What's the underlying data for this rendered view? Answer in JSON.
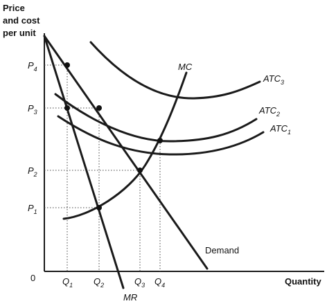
{
  "chart_data": {
    "type": "line",
    "title": "",
    "ylabel_lines": [
      "Price",
      "and cost",
      "per unit"
    ],
    "xlabel": "Quantity",
    "origin_label": "0",
    "y_ticks": [
      {
        "id": "P4",
        "base": "P",
        "sub": "4"
      },
      {
        "id": "P3",
        "base": "P",
        "sub": "3"
      },
      {
        "id": "P2",
        "base": "P",
        "sub": "2"
      },
      {
        "id": "P1",
        "base": "P",
        "sub": "1"
      }
    ],
    "x_ticks": [
      {
        "id": "Q1",
        "base": "Q",
        "sub": "1"
      },
      {
        "id": "Q2",
        "base": "Q",
        "sub": "2"
      },
      {
        "id": "Q3",
        "base": "Q",
        "sub": "3"
      },
      {
        "id": "Q4",
        "base": "Q",
        "sub": "4"
      }
    ],
    "curves": [
      {
        "id": "demand",
        "label": "Demand",
        "label_sub": ""
      },
      {
        "id": "mr",
        "label": "MR",
        "label_sub": ""
      },
      {
        "id": "mc",
        "label": "MC",
        "label_sub": ""
      },
      {
        "id": "atc1",
        "label": "ATC",
        "label_sub": "1"
      },
      {
        "id": "atc2",
        "label": "ATC",
        "label_sub": "2"
      },
      {
        "id": "atc3",
        "label": "ATC",
        "label_sub": "3"
      }
    ],
    "key_points": [
      {
        "curve": "demand",
        "x": "Q1",
        "y": "P4"
      },
      {
        "curve": "demand",
        "x": "Q2",
        "y": "P3"
      },
      {
        "curve": "demand",
        "x": "Q3",
        "y": "P2"
      },
      {
        "curve": "mr",
        "x": "Q1",
        "y": "P3"
      },
      {
        "curve": "mr",
        "x": "Q2",
        "y": "P1"
      },
      {
        "curve": "atc1",
        "x": "Q4",
        "y": ""
      }
    ]
  }
}
